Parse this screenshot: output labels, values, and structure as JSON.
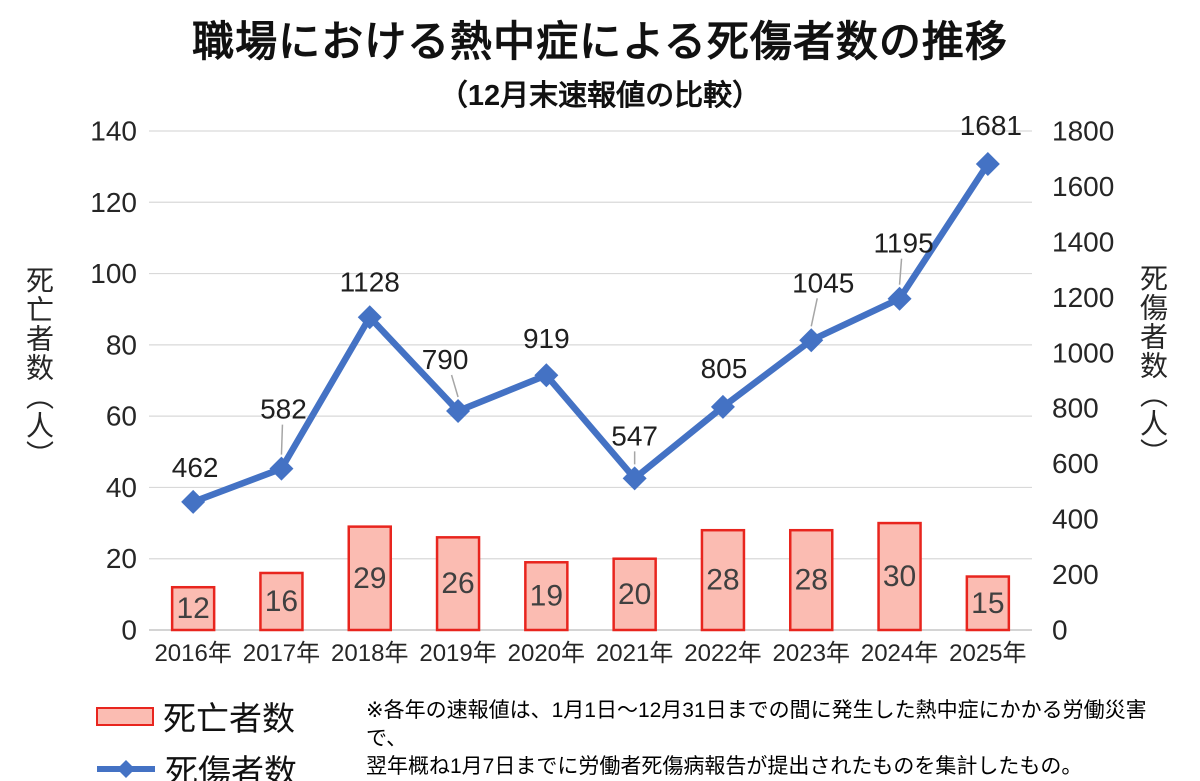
{
  "title": "職場における熱中症による死傷者数の推移",
  "subtitle": "（12月末速報値の比較）",
  "legend": [
    {
      "label": "死亡者数",
      "swatch": "bar-swatch"
    },
    {
      "label": "死傷者数",
      "swatch": "line-swatch"
    }
  ],
  "footnote": {
    "line1": "※各年の速報値は、1月1日～12月31日までの間に発生した熱中症にかかる労働災害で、",
    "line2": "翌年概ね1月7日までに労働者死傷病報告が提出されたものを集計したもの。"
  },
  "colors": {
    "bar_fill": "#fbbcb2",
    "bar_stroke": "#e8251e",
    "line": "#4472c4",
    "grid": "#d9d9d9",
    "axis_line": "#c6c6c6",
    "leader_line": "#a6a6a6",
    "tick_text": "#262626",
    "bar_label_text": "#404040",
    "line_label_text": "#1f1f1f"
  },
  "chart_data": {
    "type": "combo",
    "categories": [
      "2016年",
      "2017年",
      "2018年",
      "2019年",
      "2020年",
      "2021年",
      "2022年",
      "2023年",
      "2024年",
      "2025年"
    ],
    "series": [
      {
        "name": "死亡者数",
        "type": "bar",
        "axis": "left",
        "values": [
          12,
          16,
          29,
          26,
          19,
          20,
          28,
          28,
          30,
          15
        ]
      },
      {
        "name": "死傷者数",
        "type": "line",
        "axis": "right",
        "values": [
          462,
          582,
          1128,
          790,
          919,
          547,
          805,
          1045,
          1195,
          1681
        ]
      }
    ],
    "left_axis": {
      "title": "死亡者数（人）",
      "min": 0,
      "max": 140,
      "step": 20
    },
    "right_axis": {
      "title": "死傷者数（人）",
      "min": 0,
      "max": 1800,
      "step": 200
    },
    "grid": true,
    "data_labels": true,
    "legend_position": "bottom-left"
  }
}
